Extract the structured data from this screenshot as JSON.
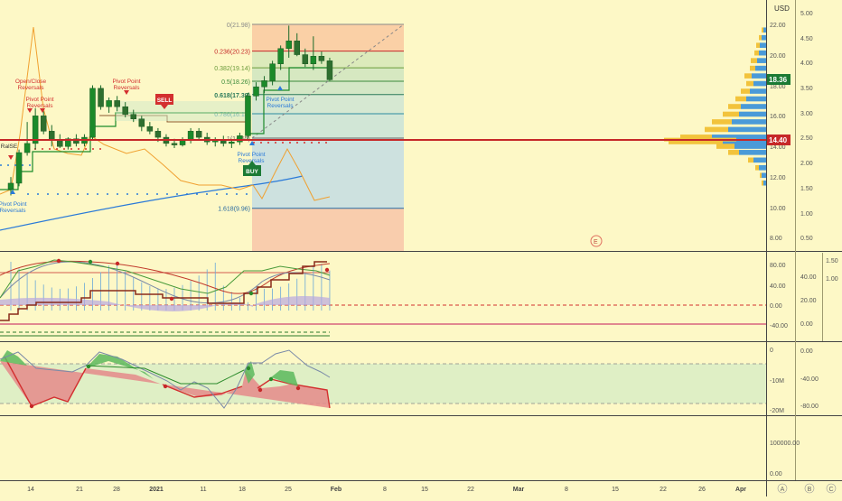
{
  "currency": "USD",
  "colors": {
    "background": "#fdf8c6",
    "up": "#1b8a2a",
    "down": "#d32f2f",
    "price_line": "#c62828",
    "accent_blue": "#2962ff",
    "last_price_badge": "#1b7a34"
  },
  "price_scale_ticks": [
    "22.00",
    "20.00",
    "18.00",
    "16.00",
    "14.00",
    "12.00",
    "10.00",
    "8.00"
  ],
  "secondary_scale_ticks": [
    "5.00",
    "4.50",
    "4.00",
    "3.50",
    "3.00",
    "2.50",
    "2.00",
    "1.50",
    "1.00",
    "0.50"
  ],
  "last_price": "18.36",
  "level_price": "14.40",
  "fib_levels": [
    {
      "label": "0(21.98)",
      "value": 21.98
    },
    {
      "label": "0.236(20.23)",
      "value": 20.23
    },
    {
      "label": "0.382(19.14)",
      "value": 19.14
    },
    {
      "label": "0.5(18.26)",
      "value": 18.26
    },
    {
      "label": "0.618(17.39)",
      "value": 17.39
    },
    {
      "label": "0.786(16.14)",
      "value": 16.14
    },
    {
      "label": "1(14.55)",
      "value": 14.55
    },
    {
      "label": "1.618(9.96)",
      "value": 9.96
    }
  ],
  "annotations": [
    {
      "text": "Open/Close Reversals",
      "kind": "red"
    },
    {
      "text": "Pivot Point Reversals",
      "kind": "red"
    },
    {
      "text": "Pivot Point Reversals",
      "kind": "red"
    },
    {
      "text": "Pivot Point Reversals",
      "kind": "blue"
    },
    {
      "text": "Pivot Point Reversals",
      "kind": "blue"
    },
    {
      "text": "Pivot Point Reversals",
      "kind": "blue"
    },
    {
      "text": "RalSE",
      "kind": "dark"
    }
  ],
  "signals": {
    "sell": "SELL",
    "buy": "BUY"
  },
  "earnings_marker": "E",
  "pane2_ticks": [
    "80.00",
    "40.00",
    "0.00",
    "-40.00"
  ],
  "pane2_right_ticks": [
    "40.00",
    "20.00",
    "0.00"
  ],
  "pane2_far_ticks": [
    "1.50",
    "1.00"
  ],
  "pane3_ticks": [
    "0",
    "-10M",
    "-20M"
  ],
  "pane3_right_ticks": [
    "0.00",
    "-40.00",
    "-80.00"
  ],
  "pane4_ticks": [
    "100000.00",
    "0.00"
  ],
  "time_axis": [
    "14",
    "21",
    "28",
    "2021",
    "11",
    "18",
    "25",
    "Feb",
    "8",
    "15",
    "22",
    "Mar",
    "8",
    "15",
    "22",
    "26",
    "Apr"
  ],
  "corner_buttons": [
    "A",
    "B",
    "C"
  ],
  "chart_data": {
    "type": "candlestick",
    "candles": [
      {
        "o": 11.2,
        "h": 12.0,
        "l": 10.8,
        "c": 11.6
      },
      {
        "o": 11.6,
        "h": 13.8,
        "l": 11.4,
        "c": 13.6
      },
      {
        "o": 13.6,
        "h": 15.6,
        "l": 13.4,
        "c": 14.2
      },
      {
        "o": 14.2,
        "h": 16.5,
        "l": 13.8,
        "c": 16.0
      },
      {
        "o": 16.0,
        "h": 16.3,
        "l": 14.8,
        "c": 15.0
      },
      {
        "o": 15.0,
        "h": 15.4,
        "l": 14.0,
        "c": 14.4
      },
      {
        "o": 14.4,
        "h": 14.8,
        "l": 13.9,
        "c": 14.0
      },
      {
        "o": 14.0,
        "h": 14.6,
        "l": 13.8,
        "c": 14.5
      },
      {
        "o": 14.5,
        "h": 14.8,
        "l": 14.0,
        "c": 14.2
      },
      {
        "o": 14.2,
        "h": 14.8,
        "l": 14.0,
        "c": 14.6
      },
      {
        "o": 14.6,
        "h": 18.0,
        "l": 14.4,
        "c": 17.8
      },
      {
        "o": 17.8,
        "h": 18.0,
        "l": 16.4,
        "c": 16.6
      },
      {
        "o": 16.6,
        "h": 17.2,
        "l": 16.2,
        "c": 17.0
      },
      {
        "o": 17.0,
        "h": 17.3,
        "l": 16.3,
        "c": 16.6
      },
      {
        "o": 16.6,
        "h": 16.9,
        "l": 15.9,
        "c": 16.1
      },
      {
        "o": 16.1,
        "h": 16.4,
        "l": 15.6,
        "c": 15.8
      },
      {
        "o": 15.8,
        "h": 16.0,
        "l": 15.0,
        "c": 15.3
      },
      {
        "o": 15.3,
        "h": 15.6,
        "l": 14.8,
        "c": 15.0
      },
      {
        "o": 15.0,
        "h": 15.2,
        "l": 14.3,
        "c": 14.6
      },
      {
        "o": 14.6,
        "h": 14.8,
        "l": 14.0,
        "c": 14.2
      },
      {
        "o": 14.2,
        "h": 14.5,
        "l": 13.9,
        "c": 14.1
      },
      {
        "o": 14.1,
        "h": 14.6,
        "l": 14.0,
        "c": 14.4
      },
      {
        "o": 14.4,
        "h": 15.2,
        "l": 14.2,
        "c": 15.0
      },
      {
        "o": 15.0,
        "h": 15.2,
        "l": 14.4,
        "c": 14.6
      },
      {
        "o": 14.6,
        "h": 14.9,
        "l": 14.1,
        "c": 14.3
      },
      {
        "o": 14.3,
        "h": 14.6,
        "l": 14.0,
        "c": 14.4
      },
      {
        "o": 14.4,
        "h": 14.7,
        "l": 14.0,
        "c": 14.2
      },
      {
        "o": 14.2,
        "h": 14.5,
        "l": 13.9,
        "c": 14.3
      },
      {
        "o": 14.3,
        "h": 14.9,
        "l": 14.1,
        "c": 14.7
      },
      {
        "o": 14.7,
        "h": 17.5,
        "l": 14.5,
        "c": 17.3
      },
      {
        "o": 17.3,
        "h": 18.2,
        "l": 17.0,
        "c": 17.9
      },
      {
        "o": 17.9,
        "h": 18.6,
        "l": 17.5,
        "c": 18.3
      },
      {
        "o": 18.3,
        "h": 19.6,
        "l": 18.0,
        "c": 19.4
      },
      {
        "o": 19.4,
        "h": 20.6,
        "l": 19.0,
        "c": 20.4
      },
      {
        "o": 20.4,
        "h": 21.9,
        "l": 19.8,
        "c": 20.9
      },
      {
        "o": 20.9,
        "h": 21.4,
        "l": 19.9,
        "c": 20.0
      },
      {
        "o": 20.0,
        "h": 20.4,
        "l": 19.2,
        "c": 19.4
      },
      {
        "o": 19.4,
        "h": 21.2,
        "l": 19.0,
        "c": 19.9
      },
      {
        "o": 19.9,
        "h": 20.2,
        "l": 19.4,
        "c": 19.6
      },
      {
        "o": 19.6,
        "h": 19.8,
        "l": 18.3,
        "c": 18.36
      }
    ]
  }
}
